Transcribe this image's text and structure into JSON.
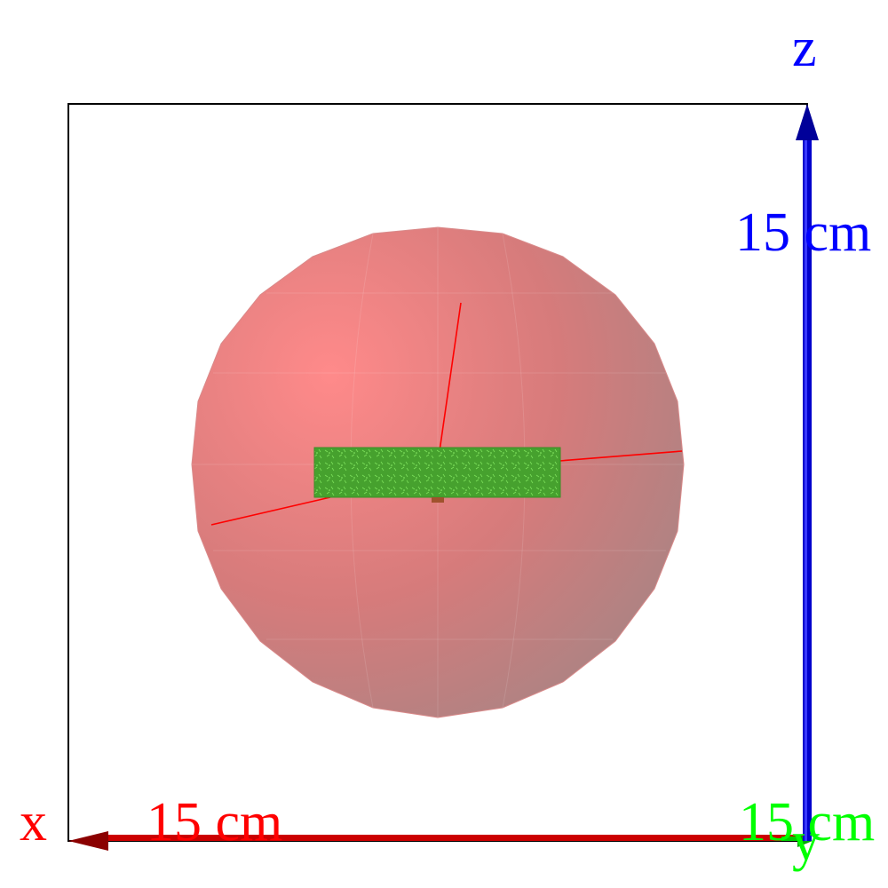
{
  "axes": {
    "x": {
      "name": "x",
      "scale_label": "15 cm",
      "color": "#ff0000"
    },
    "y": {
      "name": "y",
      "scale_label": "15 cm",
      "color": "#00ff00"
    },
    "z": {
      "name": "z",
      "scale_label": "15 cm",
      "color": "#0000ff"
    }
  },
  "colors": {
    "sphere": "#e08080",
    "detector_slab": "#3fa82a",
    "track_lines": "#ff0000",
    "frame": "#000000"
  }
}
